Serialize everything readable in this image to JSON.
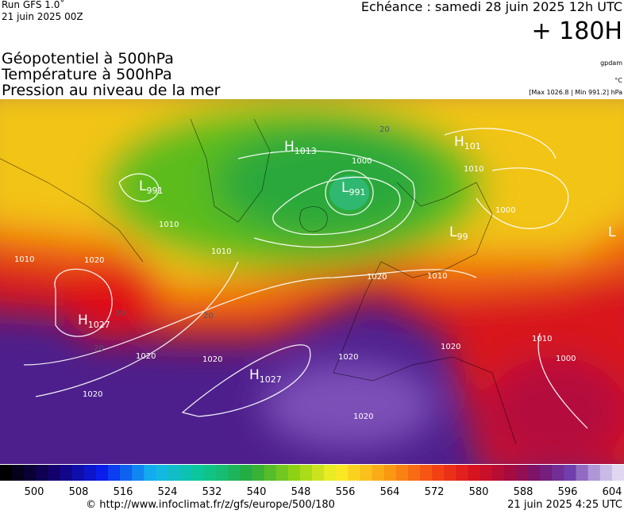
{
  "header": {
    "run": "Run GFS 1.0˚",
    "run_date": "21 juin 2025 00Z",
    "valid": "Echéance : samedi 28 juin 2025 12h UTC",
    "lead": "+ 180H",
    "fields": [
      "Géopotentiel à 500hPa",
      "Température à 500hPa",
      "Pression au niveau de la mer"
    ],
    "units": [
      "gpdam",
      "°C",
      "[Max 1026.8 | Min 991.2] hPa"
    ]
  },
  "map": {
    "centers": [
      {
        "letter": "H",
        "value": "1013"
      },
      {
        "letter": "L",
        "value": "991"
      },
      {
        "letter": "H",
        "value": "101"
      },
      {
        "letter": "L",
        "value": "991"
      },
      {
        "letter": "L",
        "value": "99"
      },
      {
        "letter": "H",
        "value": "1027"
      },
      {
        "letter": "H",
        "value": "1027"
      },
      {
        "letter": "L",
        "value": ""
      }
    ],
    "isobar_labels": [
      "1000",
      "1010",
      "1000",
      "1010",
      "1010",
      "1010",
      "1020",
      "1020",
      "1010",
      "1020",
      "1020",
      "1020",
      "1020",
      "1020",
      "1010",
      "1000",
      "1020"
    ],
    "temperature_labels": [
      "20",
      "20",
      "20",
      "20"
    ]
  },
  "colorbar": {
    "ticks": [
      "500",
      "508",
      "516",
      "524",
      "532",
      "540",
      "548",
      "556",
      "564",
      "572",
      "580",
      "588",
      "596",
      "604"
    ]
  },
  "footer": {
    "source": "© http://www.infoclimat.fr/z/gfs/europe/500/180",
    "generated": "21 juin 2025  4:25 UTC"
  }
}
